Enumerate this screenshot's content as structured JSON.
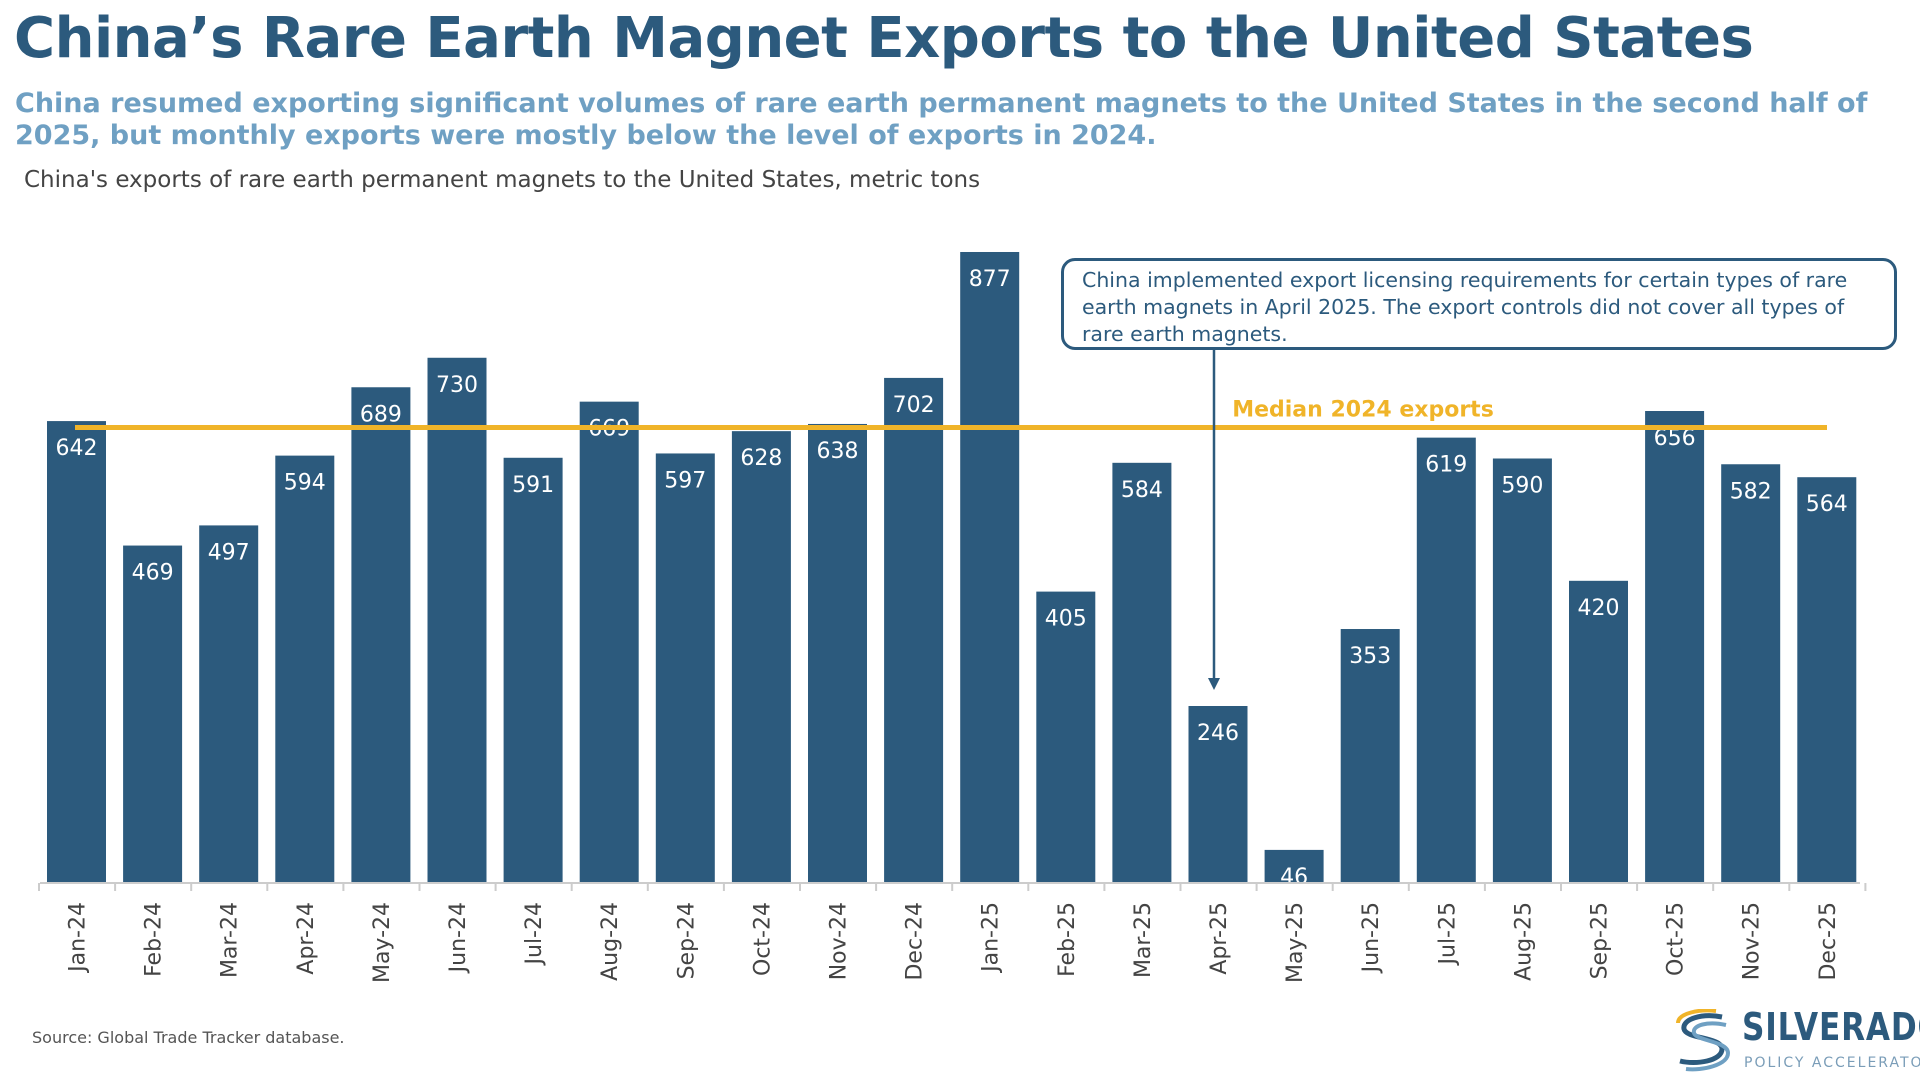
{
  "title": "China’s Rare Earth Magnet Exports to the United States",
  "subtitle": "China resumed exporting significant volumes of rare earth permanent magnets to the United States in the second half of 2025, but monthly exports were mostly below the level of exports in 2024.",
  "chart_caption": "China's exports of rare earth permanent magnets to the United States, metric tons",
  "callout_text": "China implemented export licensing requirements for certain types of rare earth magnets in April 2025. The export controls did not cover all types of rare earth magnets.",
  "source": "Source: Global Trade Tracker database.",
  "logo": {
    "name": "SILVERADO",
    "tagline": "POLICY ACCELERATOR"
  },
  "colors": {
    "bar": "#2c5a7d",
    "median_line": "#f0b429",
    "title": "#2c5a7d",
    "subtitle": "#6fa0c3"
  },
  "chart_data": {
    "type": "bar",
    "categories": [
      "Jan-24",
      "Feb-24",
      "Mar-24",
      "Apr-24",
      "May-24",
      "Jun-24",
      "Jul-24",
      "Aug-24",
      "Sep-24",
      "Oct-24",
      "Nov-24",
      "Dec-24",
      "Jan-25",
      "Feb-25",
      "Mar-25",
      "Apr-25",
      "May-25",
      "Jun-25",
      "Jul-25",
      "Aug-25",
      "Sep-25",
      "Oct-25",
      "Nov-25",
      "Dec-25"
    ],
    "values": [
      642,
      469,
      497,
      594,
      689,
      730,
      591,
      669,
      597,
      628,
      638,
      702,
      877,
      405,
      584,
      246,
      46,
      353,
      619,
      590,
      420,
      656,
      582,
      564
    ],
    "data_labels": [
      "642",
      "469",
      "497",
      "594",
      "689",
      "730",
      "591",
      "669",
      "597",
      "628",
      "638",
      "702",
      "877",
      "405",
      "584",
      "246",
      "46",
      "353",
      "619",
      "590",
      "420",
      "656",
      "582",
      "564"
    ],
    "reference_line": {
      "label": "Median 2024 exports",
      "value": 633
    },
    "annotation_target": "Apr-25",
    "ylim": [
      0,
      900
    ],
    "grid": false
  }
}
